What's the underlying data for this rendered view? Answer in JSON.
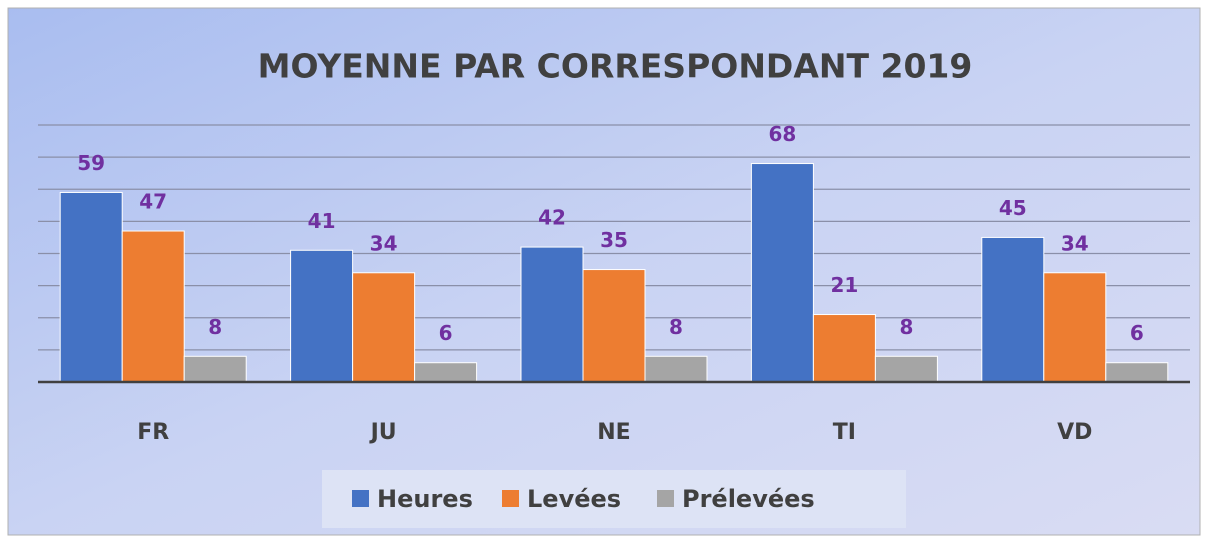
{
  "chart_data": {
    "type": "bar",
    "title": "MOYENNE PAR CORRESPONDANT 2019",
    "categories": [
      "FR",
      "JU",
      "NE",
      "TI",
      "VD"
    ],
    "series": [
      {
        "name": "Heures",
        "color": "#4472c4",
        "values": [
          59,
          41,
          42,
          68,
          45
        ]
      },
      {
        "name": "Levées",
        "color": "#ed7d31",
        "values": [
          47,
          34,
          35,
          21,
          34
        ]
      },
      {
        "name": "Prélevées",
        "color": "#a5a5a5",
        "values": [
          8,
          6,
          8,
          8,
          6
        ]
      }
    ],
    "ylim": [
      0,
      80
    ],
    "yticks": [
      0,
      10,
      20,
      30,
      40,
      50,
      60,
      70,
      80
    ],
    "grid": true,
    "legend": "bottom"
  }
}
